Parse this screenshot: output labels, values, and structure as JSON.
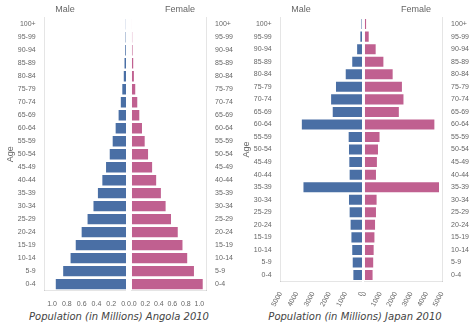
{
  "chart_data": [
    {
      "type": "bar",
      "orientation": "horizontal",
      "x_label": "Population (in Millions) Angola 2010",
      "y_label": "Age",
      "categories": [
        "0-4",
        "5-9",
        "10-14",
        "15-19",
        "20-24",
        "25-29",
        "30-34",
        "35-39",
        "40-44",
        "45-49",
        "50-54",
        "55-59",
        "60-64",
        "65-69",
        "70-74",
        "75-79",
        "80-84",
        "85-89",
        "90-94",
        "95-99",
        "100+"
      ],
      "series": [
        {
          "name": "Male",
          "color": "#4a6fa5",
          "values": [
            0.95,
            0.85,
            0.75,
            0.68,
            0.6,
            0.52,
            0.44,
            0.38,
            0.32,
            0.27,
            0.22,
            0.18,
            0.14,
            0.1,
            0.07,
            0.05,
            0.03,
            0.02,
            0.01,
            0.005,
            0.002
          ]
        },
        {
          "name": "Female",
          "color": "#c06090",
          "values": [
            1.05,
            0.92,
            0.82,
            0.75,
            0.68,
            0.58,
            0.5,
            0.43,
            0.36,
            0.3,
            0.24,
            0.19,
            0.15,
            0.11,
            0.08,
            0.05,
            0.03,
            0.02,
            0.01,
            0.005,
            0.002
          ]
        }
      ],
      "xlim": [
        0,
        1.1
      ],
      "xticks": [
        {
          "value": 0,
          "label": "0.0"
        },
        0.2,
        0.4,
        0.6,
        0.8,
        {
          "value": 1,
          "label": "1.0"
        }
      ],
      "grid": false
    },
    {
      "type": "bar",
      "orientation": "horizontal",
      "x_label": "Population (in Millions) Japan 2010",
      "y_label": "Age",
      "categories": [
        "0-4",
        "5-9",
        "10-14",
        "15-19",
        "20-24",
        "25-29",
        "30-34",
        "35-39",
        "40-44",
        "45-49",
        "50-54",
        "55-59",
        "60-64",
        "65-69",
        "70-74",
        "75-79",
        "80-84",
        "85-89",
        "90-94",
        "95-99",
        "100+"
      ],
      "series": [
        {
          "name": "Male",
          "color": "#4a6fa5",
          "values": [
            530,
            570,
            600,
            650,
            700,
            760,
            800,
            3600,
            760,
            780,
            800,
            820,
            3700,
            1800,
            1900,
            1600,
            1000,
            600,
            300,
            100,
            30
          ]
        },
        {
          "name": "Female",
          "color": "#c06090",
          "values": [
            500,
            540,
            570,
            620,
            660,
            720,
            760,
            4800,
            720,
            780,
            850,
            950,
            4500,
            2200,
            2500,
            2400,
            1800,
            1200,
            700,
            250,
            80
          ]
        }
      ],
      "xlim": [
        0,
        5000
      ],
      "xticks": [
        0,
        1000,
        2000,
        3000,
        4000,
        5000
      ],
      "grid": false
    }
  ]
}
